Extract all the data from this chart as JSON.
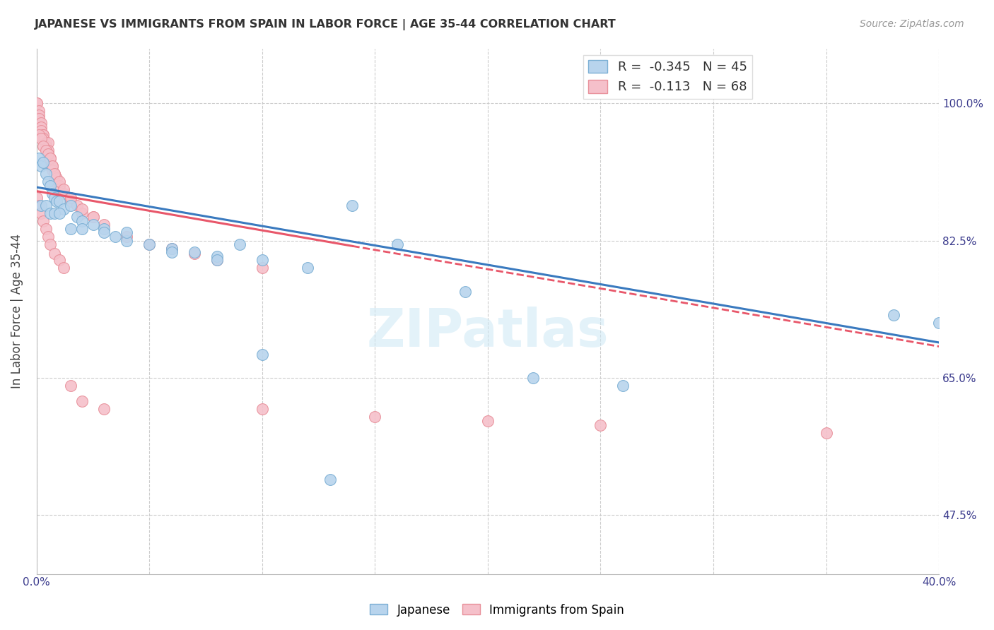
{
  "title": "JAPANESE VS IMMIGRANTS FROM SPAIN IN LABOR FORCE | AGE 35-44 CORRELATION CHART",
  "source": "Source: ZipAtlas.com",
  "ylabel": "In Labor Force | Age 35-44",
  "xlim": [
    0.0,
    0.4
  ],
  "ylim": [
    0.4,
    1.07
  ],
  "ytick_labels_pos": [
    1.0,
    0.825,
    0.65,
    0.475
  ],
  "ytick_labels": [
    "100.0%",
    "82.5%",
    "65.0%",
    "47.5%"
  ],
  "legend_r_japanese": "-0.345",
  "legend_n_japanese": "45",
  "legend_r_spain": "-0.113",
  "legend_n_spain": "68",
  "japanese_color": "#b8d4ed",
  "japan_edge_color": "#7bafd4",
  "spain_color": "#f5c0ca",
  "spain_edge_color": "#e8909a",
  "trend_japanese_color": "#3a7abf",
  "trend_spain_color": "#e8576a",
  "watermark": "ZIPatlas",
  "japanese_x": [
    0.001,
    0.002,
    0.003,
    0.004,
    0.005,
    0.006,
    0.007,
    0.008,
    0.009,
    0.01,
    0.012,
    0.015,
    0.018,
    0.02,
    0.025,
    0.03,
    0.035,
    0.04,
    0.05,
    0.06,
    0.07,
    0.08,
    0.09,
    0.1,
    0.12,
    0.14,
    0.16,
    0.19,
    0.22,
    0.26,
    0.002,
    0.004,
    0.006,
    0.008,
    0.01,
    0.015,
    0.02,
    0.03,
    0.04,
    0.06,
    0.08,
    0.1,
    0.13,
    0.38,
    0.4
  ],
  "japanese_y": [
    0.93,
    0.92,
    0.925,
    0.91,
    0.9,
    0.895,
    0.885,
    0.88,
    0.875,
    0.875,
    0.865,
    0.87,
    0.855,
    0.85,
    0.845,
    0.84,
    0.83,
    0.825,
    0.82,
    0.815,
    0.81,
    0.805,
    0.82,
    0.8,
    0.79,
    0.87,
    0.82,
    0.76,
    0.65,
    0.64,
    0.87,
    0.87,
    0.86,
    0.86,
    0.86,
    0.84,
    0.84,
    0.835,
    0.835,
    0.81,
    0.8,
    0.68,
    0.52,
    0.73,
    0.72
  ],
  "spain_x": [
    0.0,
    0.0,
    0.001,
    0.001,
    0.001,
    0.002,
    0.002,
    0.002,
    0.003,
    0.003,
    0.003,
    0.004,
    0.004,
    0.005,
    0.005,
    0.005,
    0.006,
    0.006,
    0.007,
    0.007,
    0.008,
    0.008,
    0.009,
    0.01,
    0.01,
    0.012,
    0.015,
    0.018,
    0.02,
    0.025,
    0.001,
    0.002,
    0.003,
    0.004,
    0.005,
    0.006,
    0.007,
    0.008,
    0.01,
    0.012,
    0.015,
    0.02,
    0.025,
    0.03,
    0.04,
    0.05,
    0.06,
    0.07,
    0.08,
    0.1,
    0.0,
    0.001,
    0.002,
    0.003,
    0.004,
    0.005,
    0.006,
    0.008,
    0.01,
    0.012,
    0.015,
    0.02,
    0.03,
    0.1,
    0.15,
    0.2,
    0.25,
    0.35
  ],
  "spain_y": [
    1.0,
    1.0,
    0.99,
    0.985,
    0.98,
    0.975,
    0.97,
    0.965,
    0.96,
    0.96,
    0.955,
    0.95,
    0.945,
    0.95,
    0.94,
    0.935,
    0.93,
    0.92,
    0.92,
    0.915,
    0.91,
    0.9,
    0.905,
    0.895,
    0.89,
    0.885,
    0.875,
    0.87,
    0.86,
    0.855,
    0.96,
    0.955,
    0.945,
    0.94,
    0.935,
    0.93,
    0.92,
    0.91,
    0.9,
    0.89,
    0.88,
    0.865,
    0.855,
    0.845,
    0.83,
    0.82,
    0.815,
    0.808,
    0.8,
    0.79,
    0.88,
    0.87,
    0.86,
    0.85,
    0.84,
    0.83,
    0.82,
    0.808,
    0.8,
    0.79,
    0.64,
    0.62,
    0.61,
    0.61,
    0.6,
    0.595,
    0.59,
    0.58
  ],
  "trend_japan_x0": 0.0,
  "trend_japan_x1": 0.4,
  "trend_japan_y0": 0.893,
  "trend_japan_y1": 0.695,
  "trend_spain_solid_x0": 0.0,
  "trend_spain_solid_x1": 0.14,
  "trend_spain_solid_y0": 0.888,
  "trend_spain_solid_y1": 0.818,
  "trend_spain_dash_x0": 0.14,
  "trend_spain_dash_x1": 0.4,
  "trend_spain_dash_y0": 0.818,
  "trend_spain_dash_y1": 0.69
}
